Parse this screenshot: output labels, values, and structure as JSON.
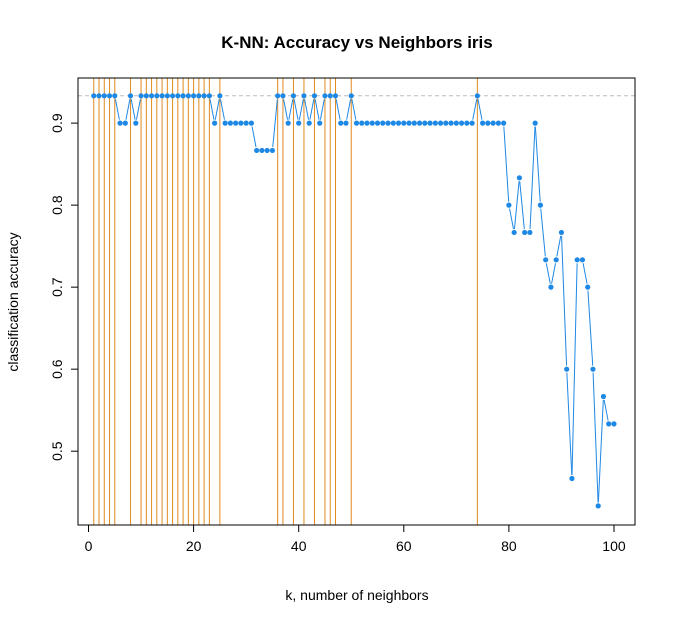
{
  "chart_data": {
    "type": "line",
    "title": "K-NN: Accuracy vs Neighbors  iris",
    "xlabel": "k, number of neighbors",
    "ylabel": "classification accuracy",
    "xlim": [
      -2,
      104
    ],
    "ylim": [
      0.41,
      0.955
    ],
    "xticks": [
      0,
      20,
      40,
      60,
      80,
      100
    ],
    "yticks": [
      0.5,
      0.6,
      0.7,
      0.8,
      0.9
    ],
    "grid": false,
    "series": [
      {
        "x": [
          1,
          2,
          3,
          4,
          5,
          6,
          7,
          8,
          9,
          10,
          11,
          12,
          13,
          14,
          15,
          16,
          17,
          18,
          19,
          20,
          21,
          22,
          23,
          24,
          25,
          26,
          27,
          28,
          29,
          30,
          31,
          32,
          33,
          34,
          35,
          36,
          37,
          38,
          39,
          40,
          41,
          42,
          43,
          44,
          45,
          46,
          47,
          48,
          49,
          50,
          51,
          52,
          53,
          54,
          55,
          56,
          57,
          58,
          59,
          60,
          61,
          62,
          63,
          64,
          65,
          66,
          67,
          68,
          69,
          70,
          71,
          72,
          73,
          74,
          75,
          76,
          77,
          78,
          79,
          80,
          81,
          82,
          83,
          84,
          85,
          86,
          87,
          88,
          89,
          90,
          91,
          92,
          93,
          94,
          95,
          96,
          97,
          98,
          99,
          100
        ],
        "values": [
          0.9333,
          0.9333,
          0.9333,
          0.9333,
          0.9333,
          0.9,
          0.9,
          0.9333,
          0.9,
          0.9333,
          0.9333,
          0.9333,
          0.9333,
          0.9333,
          0.9333,
          0.9333,
          0.9333,
          0.9333,
          0.9333,
          0.9333,
          0.9333,
          0.9333,
          0.9333,
          0.9,
          0.9333,
          0.9,
          0.9,
          0.9,
          0.9,
          0.9,
          0.9,
          0.8667,
          0.8667,
          0.8667,
          0.8667,
          0.9333,
          0.9333,
          0.9,
          0.9333,
          0.9,
          0.9333,
          0.9,
          0.9333,
          0.9,
          0.9333,
          0.9333,
          0.9333,
          0.9,
          0.9,
          0.9333,
          0.9,
          0.9,
          0.9,
          0.9,
          0.9,
          0.9,
          0.9,
          0.9,
          0.9,
          0.9,
          0.9,
          0.9,
          0.9,
          0.9,
          0.9,
          0.9,
          0.9,
          0.9,
          0.9,
          0.9,
          0.9,
          0.9,
          0.9,
          0.9333,
          0.9,
          0.9,
          0.9,
          0.9,
          0.9,
          0.8,
          0.7667,
          0.8333,
          0.7667,
          0.7667,
          0.9,
          0.8,
          0.7333,
          0.7,
          0.7333,
          0.7667,
          0.6,
          0.4667,
          0.7333,
          0.7333,
          0.7,
          0.6,
          0.4333,
          0.5667,
          0.5333,
          0.5333
        ],
        "color": "#1e88e5"
      }
    ],
    "max_accuracy": 0.9333,
    "max_line_color": "#bbbbbb",
    "optimal_k": [
      1,
      2,
      3,
      4,
      5,
      8,
      10,
      11,
      12,
      13,
      14,
      15,
      16,
      17,
      18,
      19,
      20,
      21,
      22,
      23,
      25,
      36,
      37,
      39,
      41,
      43,
      45,
      46,
      47,
      50,
      74
    ],
    "optimal_k_color": "#e08a1e"
  }
}
